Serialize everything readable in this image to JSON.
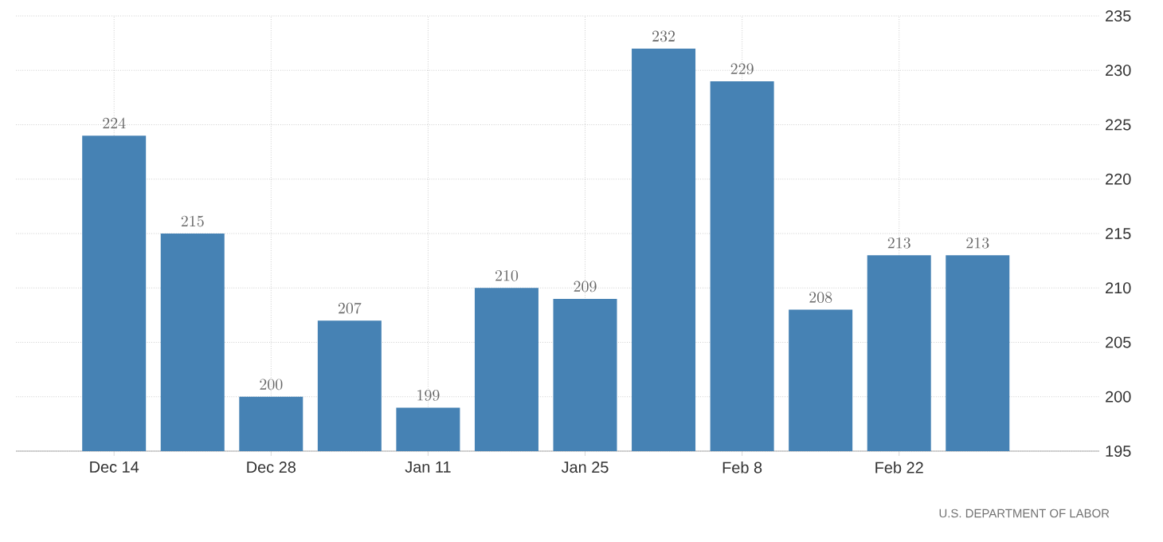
{
  "chart_data": {
    "type": "bar",
    "categories": [
      "Dec 14",
      null,
      "Dec 28",
      null,
      "Jan 11",
      null,
      "Jan 25",
      null,
      "Feb 8",
      null,
      "Feb 22",
      null
    ],
    "values": [
      224,
      215,
      200,
      207,
      199,
      210,
      209,
      232,
      229,
      208,
      213,
      213
    ],
    "color": "#4682b4",
    "ylim": [
      195,
      235
    ],
    "yticks": [
      195,
      200,
      205,
      210,
      215,
      220,
      225,
      230,
      235
    ],
    "grid": true,
    "data_labels": true,
    "annotations": [
      "U.S. DEPARTMENT OF LABOR"
    ]
  }
}
